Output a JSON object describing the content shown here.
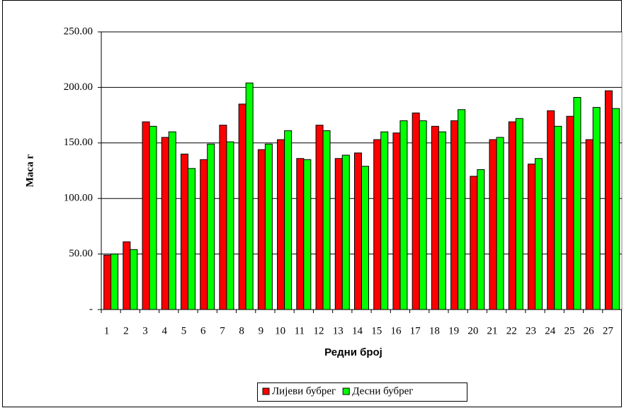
{
  "chart_data": {
    "type": "bar",
    "x_label": "Редни број",
    "y_label": "Маса г",
    "categories": [
      "1",
      "2",
      "3",
      "4",
      "5",
      "6",
      "7",
      "8",
      "9",
      "10",
      "11",
      "12",
      "13",
      "14",
      "15",
      "16",
      "17",
      "18",
      "19",
      "20",
      "21",
      "22",
      "23",
      "24",
      "25",
      "26",
      "27"
    ],
    "series": [
      {
        "name": "Лијеви бубрег",
        "color": "#ff0000",
        "values": [
          49,
          61,
          169,
          155,
          140,
          135,
          166,
          185,
          144,
          153,
          136,
          166,
          136,
          141,
          153,
          159,
          177,
          165,
          170,
          120,
          153,
          169,
          131,
          179,
          174,
          153,
          197
        ]
      },
      {
        "name": "Десни бубрег",
        "color": "#00ff00",
        "values": [
          50,
          54,
          165,
          160,
          127,
          149,
          151,
          204,
          149,
          161,
          135,
          161,
          139,
          129,
          160,
          170,
          170,
          160,
          180,
          126,
          155,
          172,
          136,
          165,
          191,
          182,
          181
        ]
      }
    ],
    "ylim": [
      0,
      250
    ],
    "yticks": [
      {
        "value": 0,
        "label": "-"
      },
      {
        "value": 50,
        "label": "50.00"
      },
      {
        "value": 100,
        "label": "100.00"
      },
      {
        "value": 150,
        "label": "150.00"
      },
      {
        "value": 200,
        "label": "200.00"
      },
      {
        "value": 250,
        "label": "250.00"
      }
    ],
    "grid": true,
    "legend": "bottom"
  }
}
